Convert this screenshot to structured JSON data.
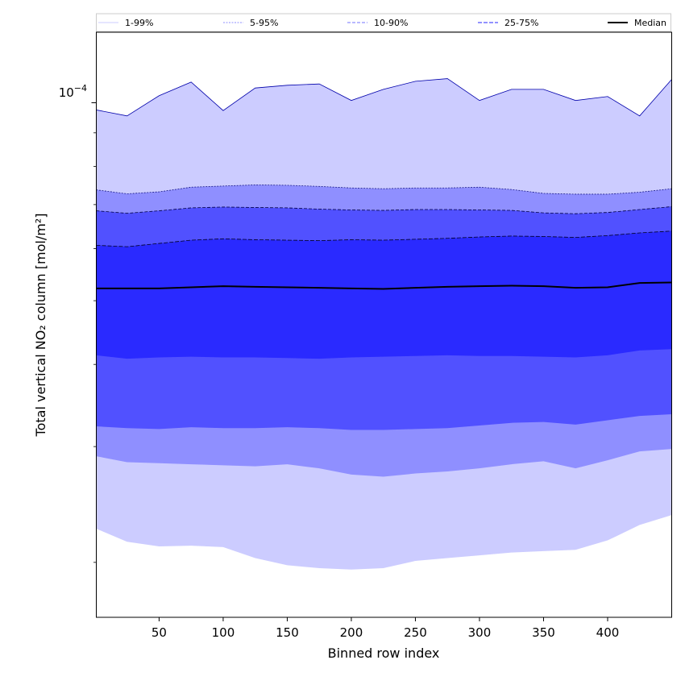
{
  "chart_data": {
    "type": "area",
    "title": "",
    "xlabel": "Binned row index",
    "ylabel": "Total vertical NO₂ column [mol/m²]",
    "y_scale": "log",
    "xlim": [
      1,
      450
    ],
    "ylim": [
      1.65e-05,
      0.000128
    ],
    "x_ticks": [
      50,
      100,
      150,
      200,
      250,
      300,
      350,
      400
    ],
    "y_tick_label": {
      "base": "10",
      "exponent": "−4",
      "value": 0.0001
    },
    "grid": false,
    "legend_position": "top",
    "x": [
      1,
      25,
      50,
      75,
      100,
      125,
      150,
      175,
      200,
      225,
      250,
      275,
      300,
      325,
      350,
      375,
      400,
      425,
      450
    ],
    "series": [
      {
        "name": "1-99%",
        "lower": [
          2.25e-05,
          2.15e-05,
          2.115e-05,
          2.12e-05,
          2.11e-05,
          2.03e-05,
          1.98e-05,
          1.96e-05,
          1.95e-05,
          1.96e-05,
          2.01e-05,
          2.03e-05,
          2.05e-05,
          2.07e-05,
          2.08e-05,
          2.09e-05,
          2.16e-05,
          2.28e-05,
          2.36e-05
        ],
        "upper": [
          9.75e-05,
          9.55e-05,
          0.0001025,
          0.0001075,
          9.73e-05,
          0.0001053,
          0.0001063,
          0.0001068,
          0.0001008,
          0.0001048,
          0.0001078,
          0.0001088,
          0.0001008,
          0.0001048,
          0.0001048,
          0.0001008,
          0.0001022,
          9.55e-05,
          0.0001085
        ]
      },
      {
        "name": "5-95%",
        "lower": [
          2.9e-05,
          2.84e-05,
          2.83e-05,
          2.82e-05,
          2.81e-05,
          2.8e-05,
          2.82e-05,
          2.78e-05,
          2.72e-05,
          2.7e-05,
          2.73e-05,
          2.75e-05,
          2.78e-05,
          2.82e-05,
          2.85e-05,
          2.78e-05,
          2.86e-05,
          2.95e-05,
          2.975e-05
        ],
        "upper": [
          7.37e-05,
          7.27e-05,
          7.32e-05,
          7.44e-05,
          7.47e-05,
          7.5e-05,
          7.49e-05,
          7.46e-05,
          7.42e-05,
          7.4e-05,
          7.42e-05,
          7.42e-05,
          7.44e-05,
          7.38e-05,
          7.28e-05,
          7.26e-05,
          7.26e-05,
          7.31e-05,
          7.4e-05
        ]
      },
      {
        "name": "10-90%",
        "lower": [
          3.22e-05,
          3.2e-05,
          3.19e-05,
          3.21e-05,
          3.2e-05,
          3.2e-05,
          3.21e-05,
          3.2e-05,
          3.18e-05,
          3.18e-05,
          3.19e-05,
          3.2e-05,
          3.23e-05,
          3.26e-05,
          3.27e-05,
          3.24e-05,
          3.29e-05,
          3.34e-05,
          3.36e-05
        ],
        "upper": [
          6.85e-05,
          6.79e-05,
          6.85e-05,
          6.92e-05,
          6.94e-05,
          6.93e-05,
          6.92e-05,
          6.89e-05,
          6.87e-05,
          6.86e-05,
          6.88e-05,
          6.88e-05,
          6.87e-05,
          6.86e-05,
          6.8e-05,
          6.78e-05,
          6.81e-05,
          6.88e-05,
          6.95e-05
        ]
      },
      {
        "name": "25-75%",
        "lower": [
          4.13e-05,
          4.08e-05,
          4.1e-05,
          4.11e-05,
          4.1e-05,
          4.1e-05,
          4.09e-05,
          4.08e-05,
          4.1e-05,
          4.11e-05,
          4.12e-05,
          4.13e-05,
          4.12e-05,
          4.12e-05,
          4.11e-05,
          4.1e-05,
          4.13e-05,
          4.2e-05,
          4.22e-05
        ],
        "upper": [
          6.07e-05,
          6.04e-05,
          6.11e-05,
          6.18e-05,
          6.21e-05,
          6.19e-05,
          6.18e-05,
          6.17e-05,
          6.19e-05,
          6.18e-05,
          6.2e-05,
          6.22e-05,
          6.25e-05,
          6.27e-05,
          6.26e-05,
          6.24e-05,
          6.28e-05,
          6.34e-05,
          6.38e-05
        ]
      },
      {
        "name": "Median",
        "values": [
          5.22e-05,
          5.22e-05,
          5.22e-05,
          5.24e-05,
          5.26e-05,
          5.25e-05,
          5.24e-05,
          5.23e-05,
          5.22e-05,
          5.21e-05,
          5.23e-05,
          5.25e-05,
          5.26e-05,
          5.27e-05,
          5.26e-05,
          5.23e-05,
          5.24e-05,
          5.32e-05,
          5.33e-05
        ]
      }
    ],
    "colors": {
      "band_1_99": "#ccccff",
      "band_5_95": "#8f8fff",
      "band_10_90": "#5151ff",
      "band_25_75": "#2a2aff",
      "line_1_99": "#0000aa",
      "line_5_95": "#1a1a88",
      "line_10_90": "#000044",
      "line_25_75": "#000022",
      "median": "#000000"
    }
  }
}
